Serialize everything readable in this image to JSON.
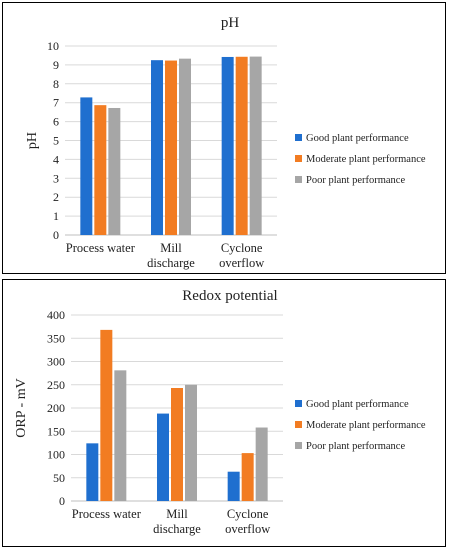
{
  "colors": {
    "good": "#1f6fcf",
    "moderate": "#f27c22",
    "poor": "#a6a6a6",
    "grid": "#d9d9d9",
    "axis": "#bfbfbf"
  },
  "chart_data": [
    {
      "type": "bar",
      "title": "pH",
      "ylabel": "pH",
      "xlabel": "",
      "ylim": [
        0,
        10
      ],
      "yticks": [
        0,
        1,
        2,
        3,
        4,
        5,
        6,
        7,
        8,
        9,
        10
      ],
      "categories": [
        [
          "Process water"
        ],
        [
          "Mill",
          "discharge"
        ],
        [
          "Cyclone",
          "overflow"
        ]
      ],
      "series": [
        {
          "name": "Good plant performance",
          "values": [
            7.28,
            9.25,
            9.42
          ]
        },
        {
          "name": "Moderate plant performance",
          "values": [
            6.87,
            9.23,
            9.43
          ]
        },
        {
          "name": "Poor plant performance",
          "values": [
            6.72,
            9.33,
            9.44
          ]
        }
      ],
      "grid": true,
      "legend": "right"
    },
    {
      "type": "bar",
      "title": "Redox potential",
      "ylabel": "ORP - mV",
      "xlabel": "",
      "ylim": [
        0,
        400
      ],
      "yticks": [
        0,
        50,
        100,
        150,
        200,
        250,
        300,
        350,
        400
      ],
      "categories": [
        [
          "Process water"
        ],
        [
          "Mill",
          "discharge"
        ],
        [
          "Cyclone",
          "overflow"
        ]
      ],
      "series": [
        {
          "name": "Good plant performance",
          "values": [
            124,
            188,
            63
          ]
        },
        {
          "name": "Moderate plant performance",
          "values": [
            368,
            243,
            103
          ]
        },
        {
          "name": "Poor plant performance",
          "values": [
            281,
            250,
            158
          ]
        }
      ],
      "grid": true,
      "legend": "right"
    }
  ]
}
